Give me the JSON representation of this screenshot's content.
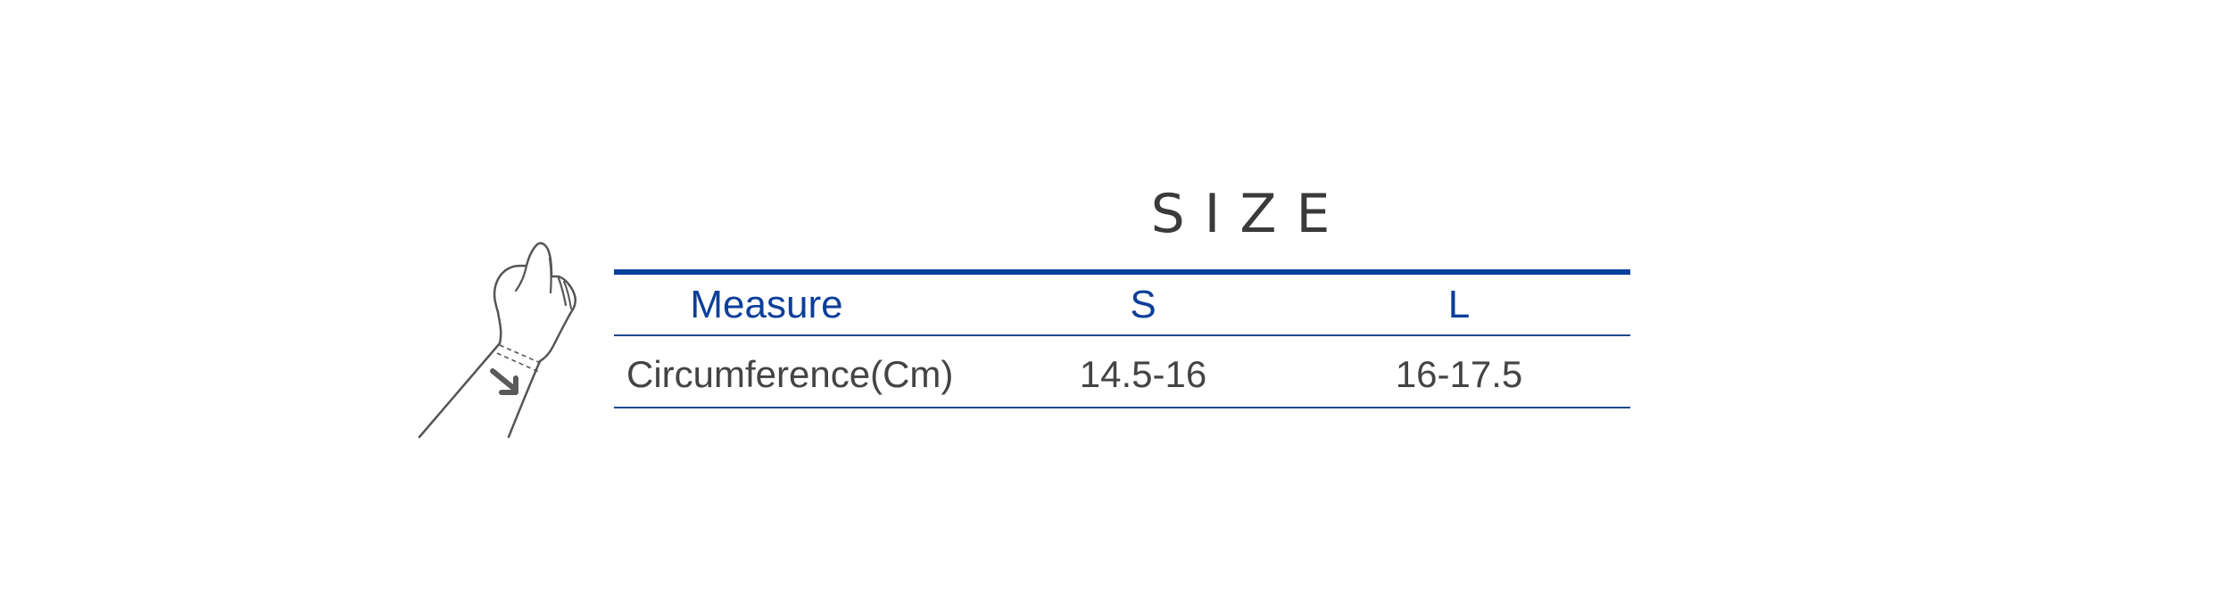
{
  "title": "SIZE",
  "table": {
    "headers": [
      "Measure",
      "S",
      "L"
    ],
    "rows": [
      {
        "label": "Circumference(Cm)",
        "s": "14.5-16",
        "l": "16-17.5"
      }
    ]
  },
  "colors": {
    "accent_blue": "#0c3f9a",
    "text_gray": "#444444",
    "title_gray": "#3a3a3a",
    "line_art": "#555555",
    "arrow": "#5a5a5a"
  },
  "icons": {
    "illustration": "wrist-measure-icon",
    "arrow": "arrow-icon"
  }
}
